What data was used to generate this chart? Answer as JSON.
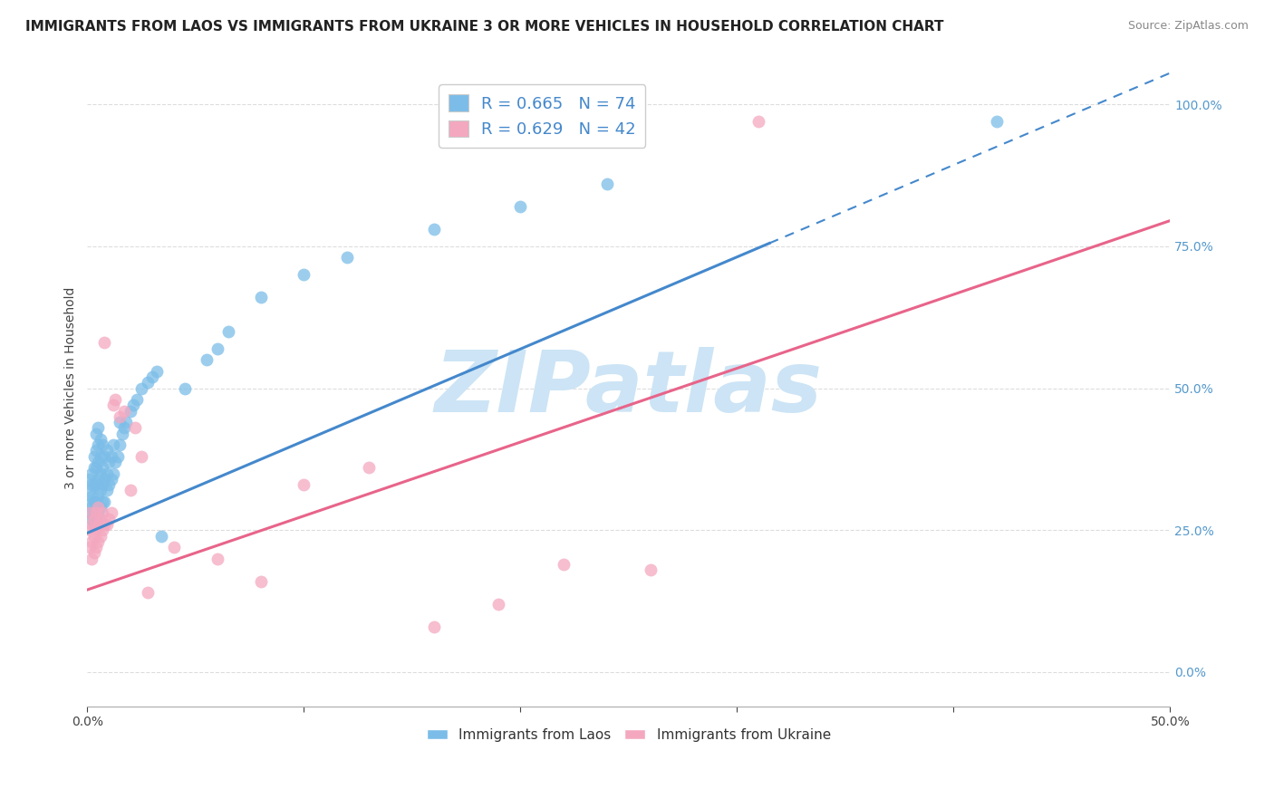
{
  "title": "IMMIGRANTS FROM LAOS VS IMMIGRANTS FROM UKRAINE 3 OR MORE VEHICLES IN HOUSEHOLD CORRELATION CHART",
  "source": "Source: ZipAtlas.com",
  "ylabel": "3 or more Vehicles in Household",
  "xlim": [
    0.0,
    0.5
  ],
  "ylim": [
    -0.06,
    1.06
  ],
  "legend_blue_label": "R = 0.665   N = 74",
  "legend_pink_label": "R = 0.629   N = 42",
  "legend_bottom_laos": "Immigrants from Laos",
  "legend_bottom_ukraine": "Immigrants from Ukraine",
  "blue_color": "#7bbde8",
  "pink_color": "#f4a8c0",
  "blue_line_color": "#4488cc",
  "pink_line_color": "#e8648a",
  "watermark": "ZIPatlas",
  "watermark_color": "#cce4f5",
  "title_fontsize": 11,
  "axis_label_fontsize": 10,
  "tick_fontsize": 10,
  "blue_line_start_y": 0.245,
  "blue_line_solid_end_x": 0.315,
  "blue_line_slope": 1.62,
  "pink_line_start_y": 0.145,
  "pink_line_slope": 1.3,
  "blue_scatter_x": [
    0.001,
    0.001,
    0.001,
    0.001,
    0.002,
    0.002,
    0.002,
    0.002,
    0.002,
    0.003,
    0.003,
    0.003,
    0.003,
    0.003,
    0.003,
    0.004,
    0.004,
    0.004,
    0.004,
    0.004,
    0.004,
    0.005,
    0.005,
    0.005,
    0.005,
    0.005,
    0.005,
    0.006,
    0.006,
    0.006,
    0.006,
    0.006,
    0.007,
    0.007,
    0.007,
    0.007,
    0.008,
    0.008,
    0.008,
    0.009,
    0.009,
    0.009,
    0.01,
    0.01,
    0.011,
    0.011,
    0.012,
    0.012,
    0.013,
    0.014,
    0.015,
    0.015,
    0.016,
    0.017,
    0.018,
    0.02,
    0.021,
    0.023,
    0.025,
    0.028,
    0.03,
    0.032,
    0.034,
    0.045,
    0.055,
    0.06,
    0.065,
    0.08,
    0.1,
    0.12,
    0.16,
    0.2,
    0.24,
    0.42
  ],
  "blue_scatter_y": [
    0.28,
    0.3,
    0.32,
    0.34,
    0.27,
    0.29,
    0.31,
    0.33,
    0.35,
    0.26,
    0.28,
    0.3,
    0.33,
    0.36,
    0.38,
    0.27,
    0.3,
    0.33,
    0.36,
    0.39,
    0.42,
    0.28,
    0.31,
    0.34,
    0.37,
    0.4,
    0.43,
    0.29,
    0.32,
    0.35,
    0.38,
    0.41,
    0.3,
    0.33,
    0.36,
    0.4,
    0.3,
    0.34,
    0.38,
    0.32,
    0.35,
    0.39,
    0.33,
    0.37,
    0.34,
    0.38,
    0.35,
    0.4,
    0.37,
    0.38,
    0.4,
    0.44,
    0.42,
    0.43,
    0.44,
    0.46,
    0.47,
    0.48,
    0.5,
    0.51,
    0.52,
    0.53,
    0.24,
    0.5,
    0.55,
    0.57,
    0.6,
    0.66,
    0.7,
    0.73,
    0.78,
    0.82,
    0.86,
    0.97
  ],
  "pink_scatter_x": [
    0.001,
    0.001,
    0.001,
    0.002,
    0.002,
    0.002,
    0.003,
    0.003,
    0.003,
    0.004,
    0.004,
    0.004,
    0.005,
    0.005,
    0.005,
    0.006,
    0.006,
    0.007,
    0.007,
    0.008,
    0.008,
    0.009,
    0.01,
    0.011,
    0.012,
    0.013,
    0.015,
    0.017,
    0.02,
    0.022,
    0.025,
    0.028,
    0.04,
    0.06,
    0.08,
    0.1,
    0.13,
    0.16,
    0.19,
    0.22,
    0.26,
    0.31
  ],
  "pink_scatter_y": [
    0.22,
    0.25,
    0.28,
    0.2,
    0.23,
    0.26,
    0.21,
    0.24,
    0.27,
    0.22,
    0.25,
    0.28,
    0.23,
    0.26,
    0.29,
    0.24,
    0.27,
    0.25,
    0.28,
    0.26,
    0.58,
    0.26,
    0.27,
    0.28,
    0.47,
    0.48,
    0.45,
    0.46,
    0.32,
    0.43,
    0.38,
    0.14,
    0.22,
    0.2,
    0.16,
    0.33,
    0.36,
    0.08,
    0.12,
    0.19,
    0.18,
    0.97
  ]
}
